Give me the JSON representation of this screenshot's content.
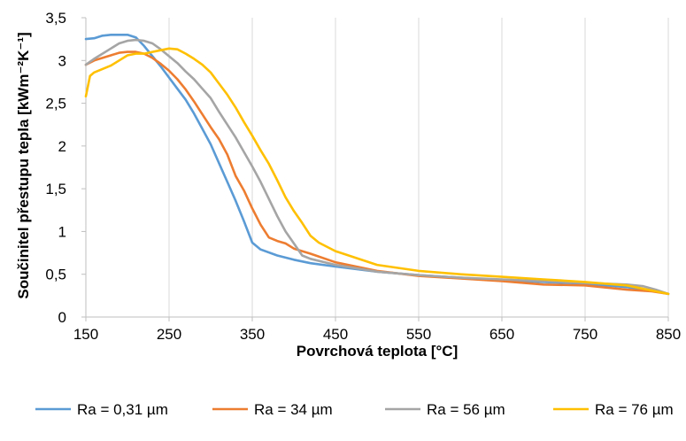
{
  "chart_data": {
    "type": "line",
    "xlabel": "Povrchová teplota [°C]",
    "ylabel": "Součinitel přestupu tepla [kWm⁻²K⁻¹]",
    "xlim": [
      150,
      850
    ],
    "ylim": [
      0,
      3.5
    ],
    "x_ticks": [
      150,
      250,
      350,
      450,
      550,
      650,
      750,
      850
    ],
    "x_tick_labels": [
      "150",
      "250",
      "350",
      "450",
      "550",
      "650",
      "750",
      "850"
    ],
    "y_ticks": [
      0,
      0.5,
      1,
      1.5,
      2,
      2.5,
      3,
      3.5
    ],
    "y_tick_labels": [
      "0",
      "0,5",
      "1",
      "1,5",
      "2",
      "2,5",
      "3",
      "3,5"
    ],
    "grid": {
      "vertical": true,
      "horizontal": false
    },
    "legend_position": "bottom",
    "series": [
      {
        "name": "Ra = 0,31 µm",
        "color": "#5B9BD5",
        "points": [
          [
            150,
            3.25
          ],
          [
            160,
            3.26
          ],
          [
            170,
            3.29
          ],
          [
            180,
            3.3
          ],
          [
            190,
            3.3
          ],
          [
            200,
            3.3
          ],
          [
            210,
            3.27
          ],
          [
            220,
            3.17
          ],
          [
            230,
            3.05
          ],
          [
            240,
            2.93
          ],
          [
            250,
            2.8
          ],
          [
            260,
            2.67
          ],
          [
            270,
            2.54
          ],
          [
            280,
            2.38
          ],
          [
            290,
            2.2
          ],
          [
            300,
            2.02
          ],
          [
            310,
            1.8
          ],
          [
            320,
            1.58
          ],
          [
            330,
            1.36
          ],
          [
            340,
            1.12
          ],
          [
            350,
            0.87
          ],
          [
            360,
            0.79
          ],
          [
            380,
            0.72
          ],
          [
            400,
            0.67
          ],
          [
            420,
            0.63
          ],
          [
            450,
            0.59
          ],
          [
            500,
            0.53
          ],
          [
            550,
            0.49
          ],
          [
            600,
            0.46
          ],
          [
            650,
            0.43
          ],
          [
            700,
            0.41
          ],
          [
            750,
            0.39
          ],
          [
            800,
            0.35
          ],
          [
            830,
            0.31
          ],
          [
            850,
            0.27
          ]
        ]
      },
      {
        "name": "Ra = 34 µm",
        "color": "#ED7D31",
        "points": [
          [
            150,
            2.95
          ],
          [
            160,
            3.0
          ],
          [
            170,
            3.03
          ],
          [
            180,
            3.06
          ],
          [
            190,
            3.09
          ],
          [
            200,
            3.1
          ],
          [
            210,
            3.1
          ],
          [
            220,
            3.08
          ],
          [
            230,
            3.03
          ],
          [
            240,
            2.96
          ],
          [
            250,
            2.88
          ],
          [
            260,
            2.78
          ],
          [
            270,
            2.66
          ],
          [
            280,
            2.52
          ],
          [
            290,
            2.37
          ],
          [
            300,
            2.22
          ],
          [
            310,
            2.08
          ],
          [
            320,
            1.9
          ],
          [
            330,
            1.65
          ],
          [
            340,
            1.48
          ],
          [
            350,
            1.27
          ],
          [
            360,
            1.08
          ],
          [
            370,
            0.93
          ],
          [
            380,
            0.89
          ],
          [
            390,
            0.86
          ],
          [
            400,
            0.8
          ],
          [
            420,
            0.74
          ],
          [
            450,
            0.64
          ],
          [
            500,
            0.54
          ],
          [
            550,
            0.48
          ],
          [
            600,
            0.45
          ],
          [
            650,
            0.42
          ],
          [
            700,
            0.38
          ],
          [
            750,
            0.37
          ],
          [
            800,
            0.32
          ],
          [
            830,
            0.3
          ],
          [
            850,
            0.27
          ]
        ]
      },
      {
        "name": "Ra = 56 µm",
        "color": "#A5A5A5",
        "points": [
          [
            150,
            2.95
          ],
          [
            160,
            3.02
          ],
          [
            170,
            3.08
          ],
          [
            180,
            3.14
          ],
          [
            190,
            3.2
          ],
          [
            200,
            3.23
          ],
          [
            210,
            3.24
          ],
          [
            220,
            3.23
          ],
          [
            230,
            3.2
          ],
          [
            240,
            3.13
          ],
          [
            250,
            3.05
          ],
          [
            260,
            2.97
          ],
          [
            270,
            2.87
          ],
          [
            280,
            2.78
          ],
          [
            290,
            2.67
          ],
          [
            300,
            2.56
          ],
          [
            310,
            2.4
          ],
          [
            320,
            2.25
          ],
          [
            330,
            2.1
          ],
          [
            340,
            1.93
          ],
          [
            350,
            1.76
          ],
          [
            360,
            1.58
          ],
          [
            370,
            1.38
          ],
          [
            380,
            1.18
          ],
          [
            390,
            1.0
          ],
          [
            400,
            0.86
          ],
          [
            410,
            0.72
          ],
          [
            420,
            0.68
          ],
          [
            450,
            0.61
          ],
          [
            500,
            0.53
          ],
          [
            550,
            0.49
          ],
          [
            600,
            0.46
          ],
          [
            650,
            0.44
          ],
          [
            700,
            0.42
          ],
          [
            750,
            0.4
          ],
          [
            800,
            0.38
          ],
          [
            820,
            0.36
          ],
          [
            835,
            0.32
          ],
          [
            850,
            0.27
          ]
        ]
      },
      {
        "name": "Ra = 76 µm",
        "color": "#FFC000",
        "points": [
          [
            150,
            2.58
          ],
          [
            155,
            2.82
          ],
          [
            160,
            2.86
          ],
          [
            170,
            2.9
          ],
          [
            180,
            2.94
          ],
          [
            190,
            3.0
          ],
          [
            200,
            3.06
          ],
          [
            210,
            3.08
          ],
          [
            220,
            3.08
          ],
          [
            230,
            3.1
          ],
          [
            240,
            3.12
          ],
          [
            250,
            3.14
          ],
          [
            260,
            3.13
          ],
          [
            270,
            3.08
          ],
          [
            280,
            3.02
          ],
          [
            290,
            2.95
          ],
          [
            300,
            2.86
          ],
          [
            310,
            2.73
          ],
          [
            320,
            2.6
          ],
          [
            330,
            2.45
          ],
          [
            340,
            2.28
          ],
          [
            350,
            2.12
          ],
          [
            360,
            1.95
          ],
          [
            370,
            1.79
          ],
          [
            380,
            1.6
          ],
          [
            390,
            1.4
          ],
          [
            400,
            1.24
          ],
          [
            410,
            1.1
          ],
          [
            420,
            0.95
          ],
          [
            430,
            0.87
          ],
          [
            450,
            0.77
          ],
          [
            500,
            0.61
          ],
          [
            550,
            0.54
          ],
          [
            600,
            0.5
          ],
          [
            650,
            0.47
          ],
          [
            700,
            0.44
          ],
          [
            750,
            0.41
          ],
          [
            800,
            0.37
          ],
          [
            850,
            0.27
          ]
        ]
      }
    ]
  }
}
